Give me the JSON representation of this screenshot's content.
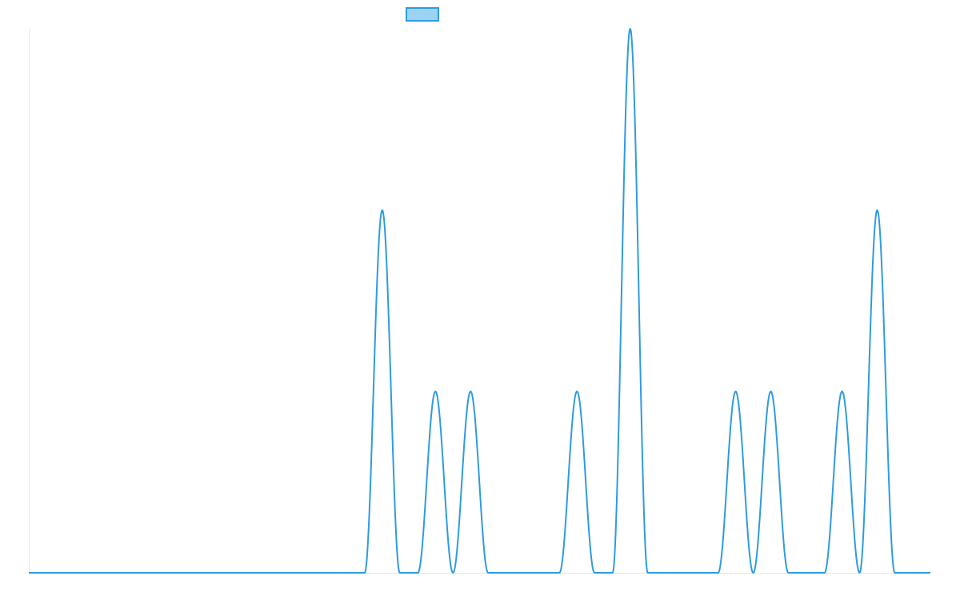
{
  "colors": {
    "series_stroke": "#2f9be0",
    "legend_fill": "#9dd2f3",
    "axis": "#e6e6e6",
    "background": "#ffffff"
  },
  "chart_data": {
    "type": "line",
    "title": "",
    "xlabel": "",
    "ylabel": "",
    "legend": {
      "position": "top-center",
      "entries": [
        {
          "label": ""
        }
      ]
    },
    "grid": false,
    "xlim": [
      0,
      1
    ],
    "ylim": [
      0,
      3
    ],
    "pulse_half_width": 0.0195,
    "baseline": 0,
    "peaks": [
      {
        "x": 0.392,
        "y": 2
      },
      {
        "x": 0.451,
        "y": 1
      },
      {
        "x": 0.49,
        "y": 1
      },
      {
        "x": 0.608,
        "y": 1
      },
      {
        "x": 0.667,
        "y": 3
      },
      {
        "x": 0.784,
        "y": 1
      },
      {
        "x": 0.823,
        "y": 1
      },
      {
        "x": 0.902,
        "y": 1
      },
      {
        "x": 0.941,
        "y": 2
      }
    ]
  }
}
